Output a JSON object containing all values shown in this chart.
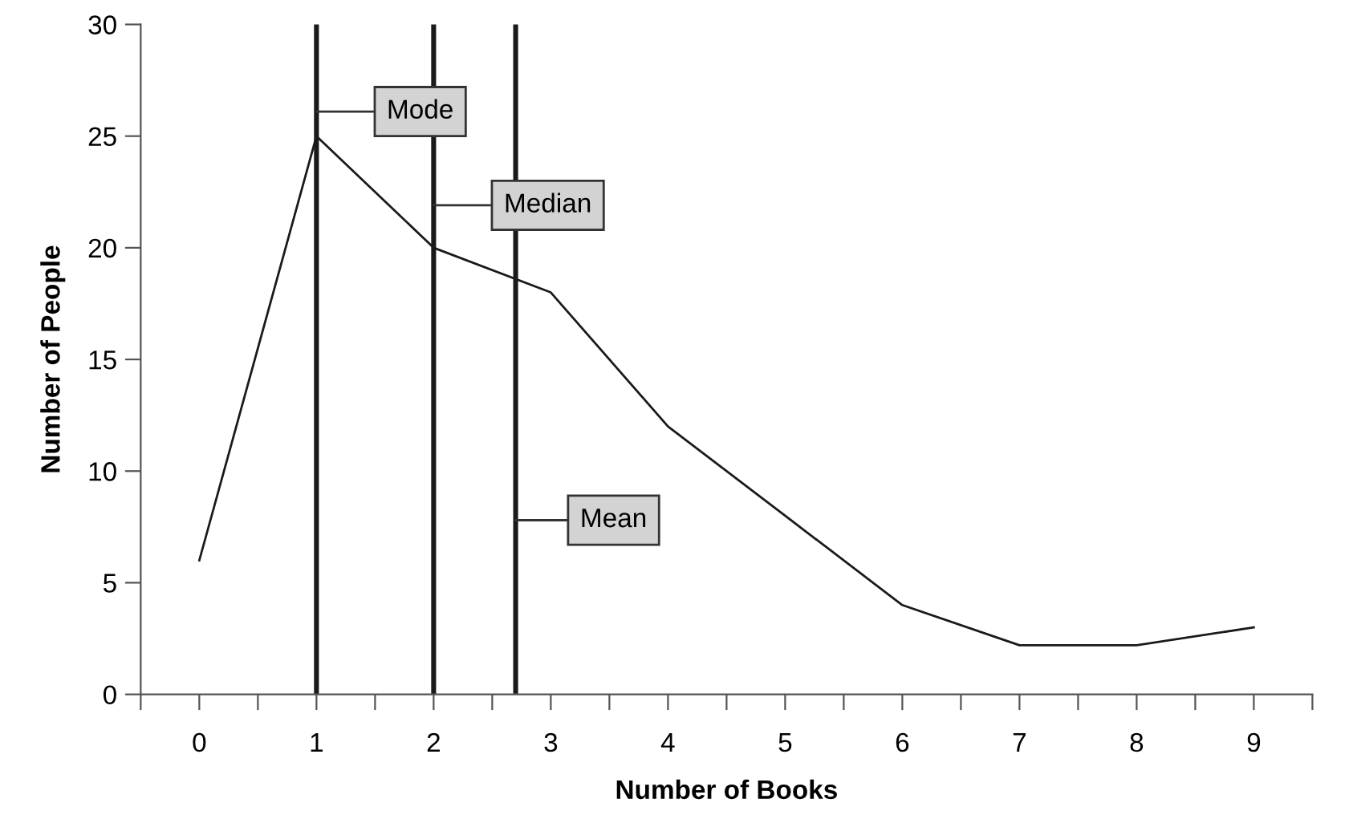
{
  "chart_data": {
    "type": "line",
    "xlabel": "Number of Books",
    "ylabel": "Number of People",
    "x": [
      0,
      1,
      2,
      3,
      4,
      5,
      6,
      7,
      8,
      9
    ],
    "series": [
      {
        "color": "#1a1a1a",
        "values": [
          6,
          25,
          20,
          18,
          12,
          8,
          4,
          2.2,
          2.2,
          3
        ]
      }
    ],
    "xlim": [
      -0.5,
      9.5
    ],
    "xticks": [
      {
        "value": -0.5,
        "label": null
      },
      0,
      {
        "value": 0.5,
        "label": null
      },
      1,
      {
        "value": 1.5,
        "label": null
      },
      2,
      {
        "value": 2.5,
        "label": null
      },
      3,
      {
        "value": 3.5,
        "label": null
      },
      4,
      {
        "value": 4.5,
        "label": null
      },
      5,
      {
        "value": 5.5,
        "label": null
      },
      6,
      {
        "value": 6.5,
        "label": null
      },
      7,
      {
        "value": 7.5,
        "label": null
      },
      8,
      {
        "value": 8.5,
        "label": null
      },
      9,
      {
        "value": 9.5,
        "label": null
      }
    ],
    "ylim": [
      0,
      30
    ],
    "yticks": [
      0,
      5,
      10,
      15,
      20,
      25,
      30
    ],
    "ref_lines": [
      {
        "axis": "x",
        "value": 1,
        "label": "Mode",
        "color": "#1a1a1a"
      },
      {
        "axis": "x",
        "value": 2,
        "label": "Median",
        "color": "#1a1a1a"
      },
      {
        "axis": "x",
        "value": 2.7,
        "label": "Mean",
        "color": "#1a1a1a"
      }
    ],
    "grid": false,
    "marker": "none",
    "line_style": "solid"
  }
}
